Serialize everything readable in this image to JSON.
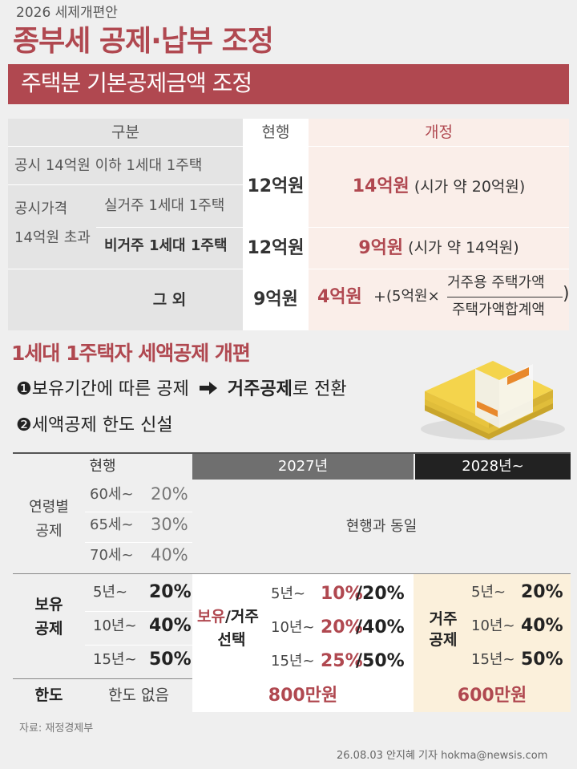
{
  "header": {
    "kicker": "2026 세제개편안",
    "title": "종부세 공제·납부 조정",
    "banner": "주택분 기본공제금액 조정"
  },
  "table1": {
    "col_headers": [
      "구분",
      "현행",
      "개정"
    ],
    "row1_label": "공시 14억원 이하 1세대 1주택",
    "group_label_line1": "공시가격",
    "group_label_line2": "14억원 초과",
    "row2_label": "실거주 1세대 1주택",
    "row3_label": "비거주 1세대 1주택",
    "row4_label": "그 외",
    "current_12": "12억원",
    "current_12b": "12억원",
    "current_9": "9억원",
    "rev1_main": "14억원",
    "rev1_note": "(시가 약 20억원)",
    "rev3_main": "9억원",
    "rev3_note": "(시가 약 14억원)",
    "rev4_main": "4억원",
    "rev4_plus": "+",
    "rev4_open": "(5억원×",
    "rev4_num": "거주용 주택가액",
    "rev4_den": "주택가액합계액",
    "rev4_close": ")"
  },
  "section2": {
    "title": "1세대 1주택자 세액공제 개편",
    "bullet1_num": "❶",
    "bullet1_pre": "보유기간에 따른 공제",
    "bullet1_bold": "거주공제",
    "bullet1_post": "로 전환",
    "bullet2_num": "❷",
    "bullet2_text": "세액공제 한도 신설"
  },
  "table2": {
    "head_current": "현행",
    "head_2027": "2027년",
    "head_2028": "2028년~",
    "age_label_1": "연령별",
    "age_label_2": "공제",
    "age_rows": [
      {
        "age": "60세~",
        "rate": "20%"
      },
      {
        "age": "65세~",
        "rate": "30%"
      },
      {
        "age": "70세~",
        "rate": "40%"
      }
    ],
    "same_as_current": "현행과 동일",
    "hold_label_1": "보유",
    "hold_label_2": "공제",
    "hold_rows": [
      {
        "year": "5년~",
        "rate": "20%"
      },
      {
        "year": "10년~",
        "rate": "40%"
      },
      {
        "year": "15년~",
        "rate": "50%"
      }
    ],
    "choice_label_a": "보유",
    "choice_label_b": "/거주",
    "choice_label_2": "선택",
    "choice_rows": [
      {
        "year": "5년~",
        "r1": "10%",
        "r2": "/20%"
      },
      {
        "year": "10년~",
        "r1": "20%",
        "r2": "/40%"
      },
      {
        "year": "15년~",
        "r1": "25%",
        "r2": "/50%"
      }
    ],
    "res_label_1": "거주",
    "res_label_2": "공제",
    "res_rows": [
      {
        "year": "5년~",
        "rate": "20%"
      },
      {
        "year": "10년~",
        "rate": "40%"
      },
      {
        "year": "15년~",
        "rate": "50%"
      }
    ],
    "limit_label": "한도",
    "limit_current": "한도 없음",
    "limit_2027": "800만원",
    "limit_2028": "600만원"
  },
  "footer": {
    "source": "자료: 재정경제부",
    "credit": "26.08.03 안지혜 기자 hokma@newsis.com"
  },
  "colors": {
    "accent": "#b04850",
    "dark_header": "#6f6f6f",
    "black_header": "#222222",
    "revision_bg": "#faeee9",
    "highlight_bg": "#fbf0db",
    "grey_bg": "#e4e4e4"
  }
}
